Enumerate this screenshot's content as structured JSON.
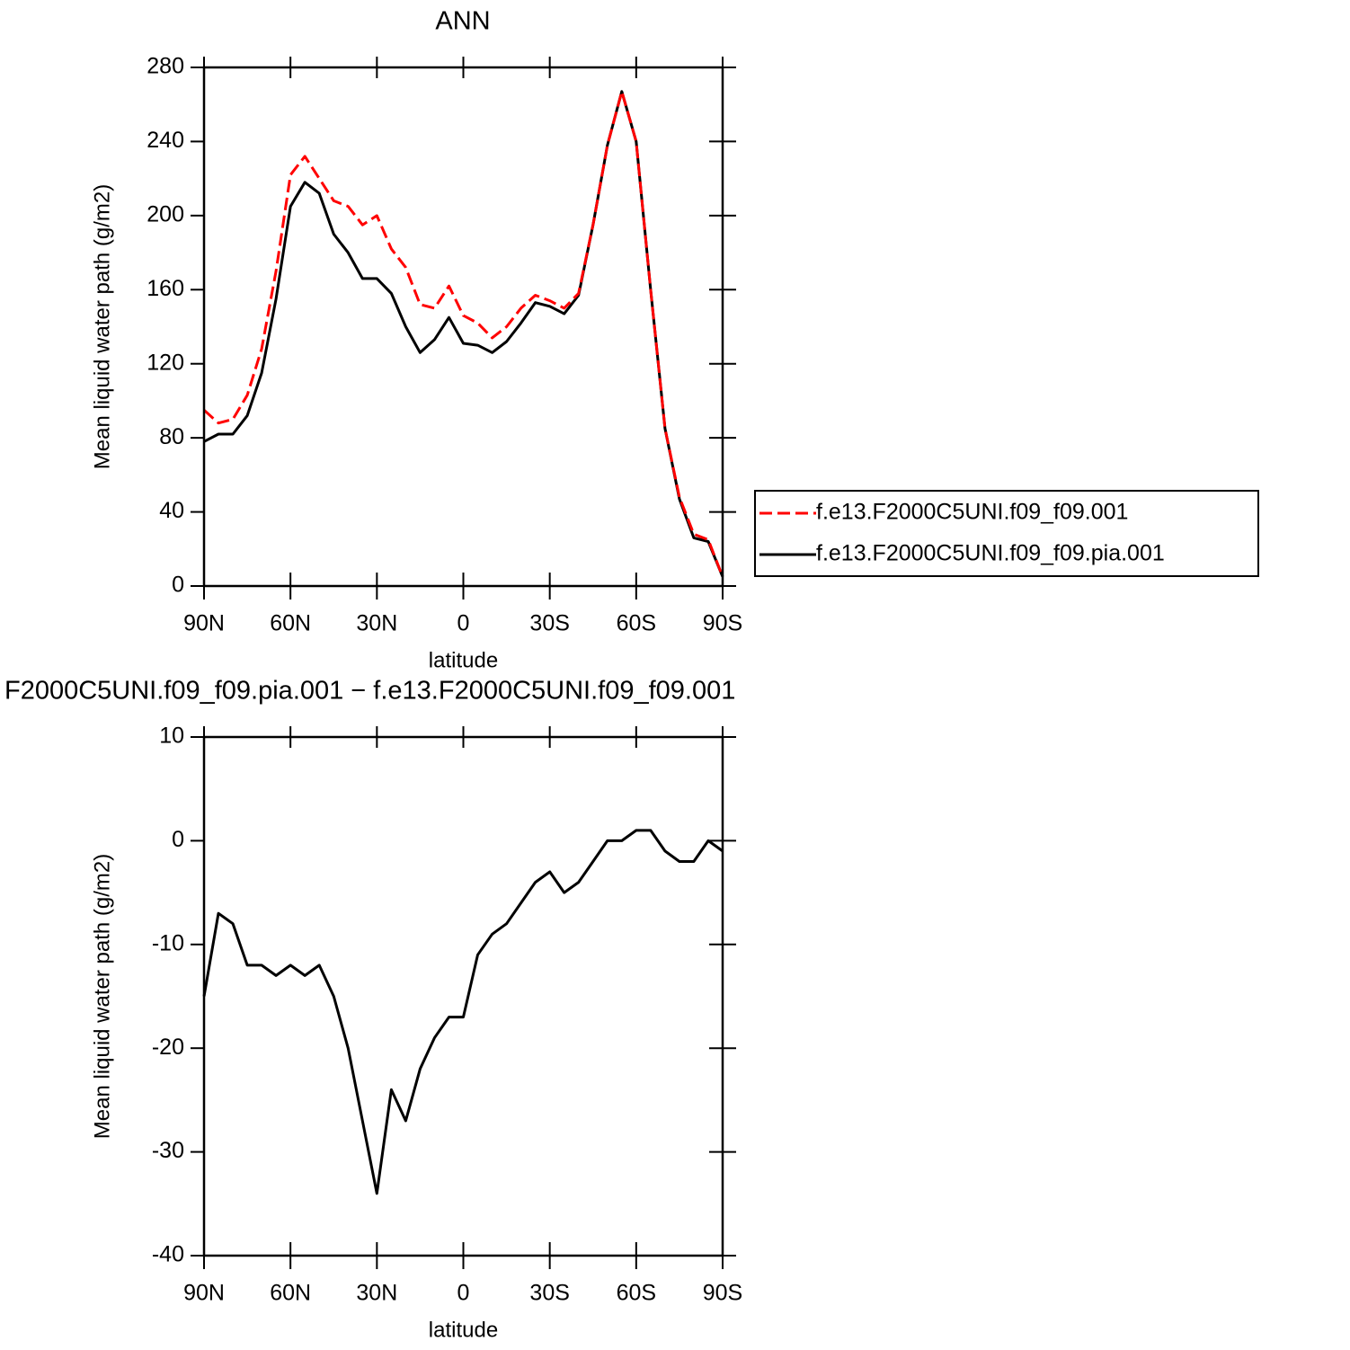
{
  "chart_data": [
    {
      "type": "line",
      "title": "ANN",
      "xlabel": "latitude",
      "ylabel": "Mean liquid water path (g/m2)",
      "x": [
        90,
        85,
        80,
        75,
        70,
        65,
        60,
        55,
        50,
        45,
        40,
        35,
        30,
        25,
        20,
        15,
        10,
        5,
        0,
        -5,
        -10,
        -15,
        -20,
        -25,
        -30,
        -35,
        -40,
        -45,
        -50,
        -55,
        -60,
        -65,
        -70,
        -75,
        -80,
        -85,
        -90
      ],
      "series": [
        {
          "name": "f.e13.F2000C5UNI.f09_f09.001",
          "color": "#ff0000",
          "line_style": "dashed",
          "values": [
            95,
            88,
            90,
            103,
            128,
            170,
            222,
            232,
            220,
            208,
            205,
            195,
            200,
            182,
            172,
            152,
            150,
            162,
            146,
            142,
            134,
            140,
            150,
            157,
            154,
            150,
            158,
            195,
            238,
            267,
            240,
            160,
            85,
            48,
            28,
            25,
            5
          ]
        },
        {
          "name": "f.e13.F2000C5UNI.f09_f09.pia.001",
          "color": "#000000",
          "line_style": "solid",
          "values": [
            78,
            82,
            82,
            92,
            115,
            155,
            205,
            218,
            212,
            190,
            180,
            166,
            166,
            158,
            140,
            126,
            133,
            145,
            131,
            130,
            126,
            132,
            142,
            153,
            151,
            147,
            157,
            195,
            238,
            267,
            240,
            160,
            85,
            47,
            26,
            24,
            5
          ]
        }
      ],
      "xlim": [
        90,
        -90
      ],
      "xticks": [
        {
          "value": 90,
          "label": "90N"
        },
        {
          "value": 60,
          "label": "60N"
        },
        {
          "value": 30,
          "label": "30N"
        },
        0,
        {
          "value": -30,
          "label": "30S"
        },
        {
          "value": -60,
          "label": "60S"
        },
        {
          "value": -90,
          "label": "90S"
        }
      ],
      "ylim": [
        0,
        280
      ],
      "yticks": [
        0,
        40,
        80,
        120,
        160,
        200,
        240,
        280
      ],
      "legend": "right"
    },
    {
      "type": "line",
      "title": "F2000C5UNI.f09_f09.pia.001 − f.e13.F2000C5UNI.f09_f09.001",
      "xlabel": "latitude",
      "ylabel": "Mean liquid water path (g/m2)",
      "x": [
        90,
        85,
        80,
        75,
        70,
        65,
        60,
        55,
        50,
        45,
        40,
        35,
        30,
        25,
        20,
        15,
        10,
        5,
        0,
        -5,
        -10,
        -15,
        -20,
        -25,
        -30,
        -35,
        -40,
        -45,
        -50,
        -55,
        -60,
        -65,
        -70,
        -75,
        -80,
        -85,
        -90
      ],
      "values": [
        -15,
        -7,
        -8,
        -12,
        -12,
        -13,
        -12,
        -13,
        -12,
        -15,
        -20,
        -27,
        -34,
        -24,
        -27,
        -22,
        -19,
        -17,
        -17,
        -11,
        -9,
        -8,
        -6,
        -4,
        -3,
        -5,
        -4,
        -2,
        0,
        0,
        1,
        1,
        -1,
        -2,
        -2,
        0,
        -1
      ],
      "color": "#000000",
      "xlim": [
        90,
        -90
      ],
      "xticks": [
        {
          "value": 90,
          "label": "90N"
        },
        {
          "value": 60,
          "label": "60N"
        },
        {
          "value": 30,
          "label": "30N"
        },
        0,
        {
          "value": -30,
          "label": "30S"
        },
        {
          "value": -60,
          "label": "60S"
        },
        {
          "value": -90,
          "label": "90S"
        }
      ],
      "ylim": [
        -40,
        10
      ],
      "yticks": [
        -40,
        -30,
        -20,
        -10,
        0,
        10
      ]
    }
  ]
}
